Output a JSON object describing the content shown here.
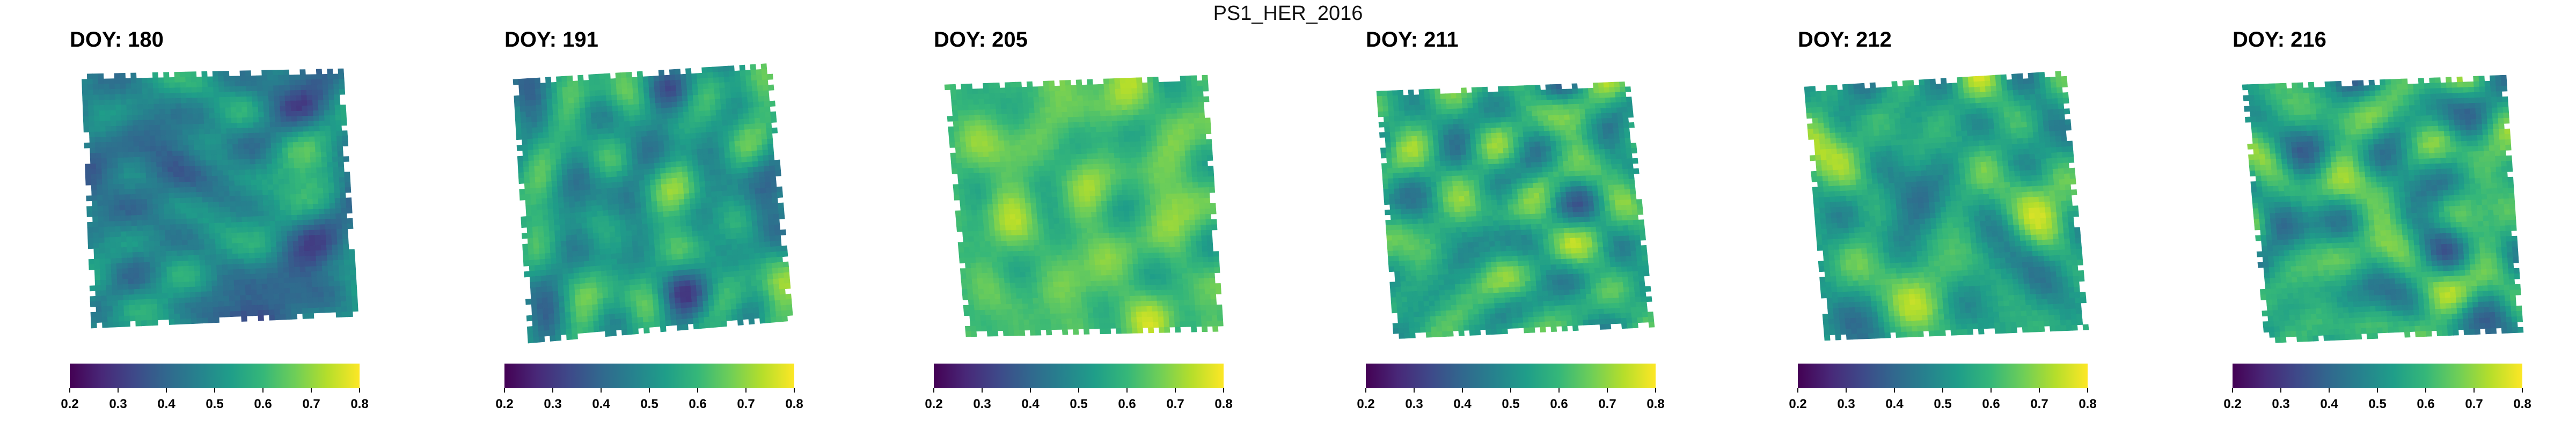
{
  "figure_title": "PS1_HER_2016",
  "colors": {
    "viridis": [
      "#440154",
      "#482878",
      "#3e4989",
      "#31688e",
      "#26828e",
      "#1f9e89",
      "#35b779",
      "#6ece58",
      "#b5de2b",
      "#fde725"
    ],
    "background": "#ffffff"
  },
  "colorbar_tick_labels": [
    "0.2",
    "0.3",
    "0.4",
    "0.5",
    "0.6",
    "0.7",
    "0.8"
  ],
  "chart_data": [
    {
      "type": "heatmap",
      "title": "DOY: 180",
      "colorbar": {
        "min": 0.2,
        "max": 0.8,
        "ticks": [
          0.2,
          0.3,
          0.4,
          0.5,
          0.6,
          0.7,
          0.8
        ],
        "palette": "viridis"
      },
      "value_range_shown": [
        0.3,
        0.65
      ],
      "mean_value": 0.47
    },
    {
      "type": "heatmap",
      "title": "DOY: 191",
      "colorbar": {
        "min": 0.2,
        "max": 0.8,
        "ticks": [
          0.2,
          0.3,
          0.4,
          0.5,
          0.6,
          0.7,
          0.8
        ],
        "palette": "viridis"
      },
      "value_range_shown": [
        0.3,
        0.72
      ],
      "mean_value": 0.5
    },
    {
      "type": "heatmap",
      "title": "DOY: 205",
      "colorbar": {
        "min": 0.2,
        "max": 0.8,
        "ticks": [
          0.2,
          0.3,
          0.4,
          0.5,
          0.6,
          0.7,
          0.8
        ],
        "palette": "viridis"
      },
      "value_range_shown": [
        0.5,
        0.76
      ],
      "mean_value": 0.65
    },
    {
      "type": "heatmap",
      "title": "DOY: 211",
      "colorbar": {
        "min": 0.2,
        "max": 0.8,
        "ticks": [
          0.2,
          0.3,
          0.4,
          0.5,
          0.6,
          0.7,
          0.8
        ],
        "palette": "viridis"
      },
      "value_range_shown": [
        0.35,
        0.75
      ],
      "mean_value": 0.55
    },
    {
      "type": "heatmap",
      "title": "DOY: 212",
      "colorbar": {
        "min": 0.2,
        "max": 0.8,
        "ticks": [
          0.2,
          0.3,
          0.4,
          0.5,
          0.6,
          0.7,
          0.8
        ],
        "palette": "viridis"
      },
      "value_range_shown": [
        0.4,
        0.76
      ],
      "mean_value": 0.6
    },
    {
      "type": "heatmap",
      "title": "DOY: 216",
      "colorbar": {
        "min": 0.2,
        "max": 0.8,
        "ticks": [
          0.2,
          0.3,
          0.4,
          0.5,
          0.6,
          0.7,
          0.8
        ],
        "palette": "viridis"
      },
      "value_range_shown": [
        0.35,
        0.74
      ],
      "mean_value": 0.55
    }
  ]
}
